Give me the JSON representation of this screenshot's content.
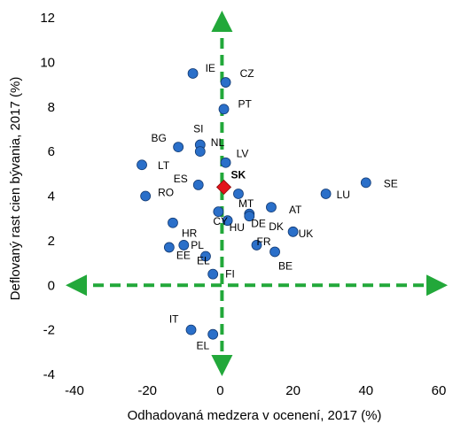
{
  "chart_data": {
    "type": "scatter",
    "xlabel": "Odhadovaná medzera v ocenení, 2017 (%)",
    "ylabel": "Deflovaný rast cien bývania, 2017 (%)",
    "xlim": [
      -40,
      60
    ],
    "ylim": [
      -4,
      12
    ],
    "xticks": [
      "-40",
      "-20",
      "0",
      "20",
      "40",
      "60"
    ],
    "yticks": [
      "-4",
      "-2",
      "0",
      "2",
      "4",
      "6",
      "8",
      "10",
      "12"
    ],
    "grid": false,
    "colors": {
      "points": "#2a6fc9",
      "highlight": "#e3141b",
      "axes_arrows": "#22a83a"
    },
    "points": [
      {
        "label": "IE",
        "x": -7.5,
        "y": 9.5
      },
      {
        "label": "CZ",
        "x": 1.5,
        "y": 9.1
      },
      {
        "label": "PT",
        "x": 1.0,
        "y": 7.9
      },
      {
        "label": "SI",
        "x": -5.5,
        "y": 6.3
      },
      {
        "label": "BG",
        "x": -11.5,
        "y": 6.2
      },
      {
        "label": "NL",
        "x": -5.5,
        "y": 6.0
      },
      {
        "label": "LV",
        "x": 1.5,
        "y": 5.5
      },
      {
        "label": "LT",
        "x": -21.5,
        "y": 5.4
      },
      {
        "label": "SK",
        "x": 1.0,
        "y": 4.4,
        "highlight": true
      },
      {
        "label": "ES",
        "x": -6.0,
        "y": 4.5
      },
      {
        "label": "RO",
        "x": -20.5,
        "y": 4.0
      },
      {
        "label": "MT",
        "x": 5.0,
        "y": 4.1
      },
      {
        "label": "LU",
        "x": 29.0,
        "y": 4.1
      },
      {
        "label": "SE",
        "x": 40.0,
        "y": 4.6
      },
      {
        "label": "AT",
        "x": 14.0,
        "y": 3.5
      },
      {
        "label": "DE",
        "x": 8.0,
        "y": 3.2
      },
      {
        "label": "DK",
        "x": 8.0,
        "y": 3.1
      },
      {
        "label": "HU",
        "x": 2.0,
        "y": 2.9
      },
      {
        "label": "HR",
        "x": -13.0,
        "y": 2.8
      },
      {
        "label": "CY",
        "x": -0.5,
        "y": 3.3
      },
      {
        "label": "UK",
        "x": 20.0,
        "y": 2.4
      },
      {
        "label": "PL",
        "x": -10.0,
        "y": 1.8
      },
      {
        "label": "FR",
        "x": 10.0,
        "y": 1.8
      },
      {
        "label": "EE",
        "x": -14.0,
        "y": 1.7
      },
      {
        "label": "BE",
        "x": 15.0,
        "y": 1.5
      },
      {
        "label": "EL",
        "x": -4.0,
        "y": 1.3
      },
      {
        "label": "FI",
        "x": -2.0,
        "y": 0.5
      },
      {
        "label": "IT",
        "x": -8.0,
        "y": -2.0
      },
      {
        "label": "EL2",
        "x": -2.0,
        "y": -2.2
      }
    ]
  }
}
